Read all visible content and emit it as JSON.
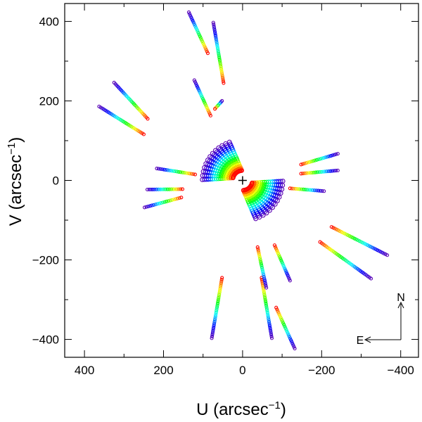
{
  "chart_data": {
    "type": "scatter",
    "title": "",
    "xlabel": "U (arcsec",
    "xlabel_sup": "−1",
    "xlabel_end": ")",
    "ylabel": "V (arcsec",
    "ylabel_sup": "−1",
    "ylabel_end": ")",
    "xlim": [
      450,
      -445
    ],
    "ylim": [
      -445,
      445
    ],
    "x_ticks": [
      400,
      200,
      0,
      -200,
      -400
    ],
    "y_ticks": [
      400,
      200,
      0,
      -200,
      -400
    ],
    "x_tick_labels": [
      "400",
      "200",
      "0",
      "−200",
      "−400"
    ],
    "y_tick_labels": [
      "400",
      "200",
      "0",
      "−200",
      "−400"
    ],
    "grid": false,
    "colormap": [
      "#5a00b4",
      "#0000ff",
      "#00ffff",
      "#00ff00",
      "#ffff00",
      "#ff0000"
    ],
    "center_marker": {
      "u": 0,
      "v": 0,
      "symbol": "+"
    },
    "compass": {
      "north_label": "N",
      "east_label": "E"
    },
    "tracks": [
      {
        "start": [
          136,
          423
        ],
        "end": [
          88,
          320
        ]
      },
      {
        "start": [
          74,
          397
        ],
        "end": [
          48,
          245
        ]
      },
      {
        "start": [
          325,
          246
        ],
        "end": [
          240,
          155
        ]
      },
      {
        "start": [
          363,
          186
        ],
        "end": [
          250,
          116
        ]
      },
      {
        "start": [
          122,
          252
        ],
        "end": [
          81,
          163
        ]
      },
      {
        "start": [
          217,
          30
        ],
        "end": [
          120,
          15
        ]
      },
      {
        "start": [
          241,
          -23
        ],
        "end": [
          152,
          -22
        ]
      },
      {
        "start": [
          248,
          -68
        ],
        "end": [
          155,
          -43
        ]
      },
      {
        "start": [
          -241,
          67
        ],
        "end": [
          -148,
          40
        ]
      },
      {
        "start": [
          -241,
          25
        ],
        "end": [
          -148,
          17
        ]
      },
      {
        "start": [
          -206,
          -27
        ],
        "end": [
          -120,
          -20
        ]
      },
      {
        "start": [
          -366,
          -188
        ],
        "end": [
          -225,
          -117
        ]
      },
      {
        "start": [
          -325,
          -247
        ],
        "end": [
          -196,
          -155
        ]
      },
      {
        "start": [
          -132,
          -423
        ],
        "end": [
          -85,
          -320
        ]
      },
      {
        "start": [
          -74,
          -397
        ],
        "end": [
          -48,
          -245
        ]
      },
      {
        "start": [
          -120,
          -252
        ],
        "end": [
          -81,
          -163
        ]
      },
      {
        "start": [
          -60,
          -270
        ],
        "end": [
          -38,
          -168
        ]
      },
      {
        "start": [
          78,
          -397
        ],
        "end": [
          52,
          -245
        ]
      },
      {
        "start": [
          52,
          200
        ],
        "end": [
          70,
          180
        ]
      }
    ],
    "inner_fan": {
      "angle_start_deg": 95,
      "angle_end_deg": 165,
      "n_tracks": 13,
      "r_inner": 25,
      "r_outer": 102,
      "twist_deg": 14
    }
  }
}
